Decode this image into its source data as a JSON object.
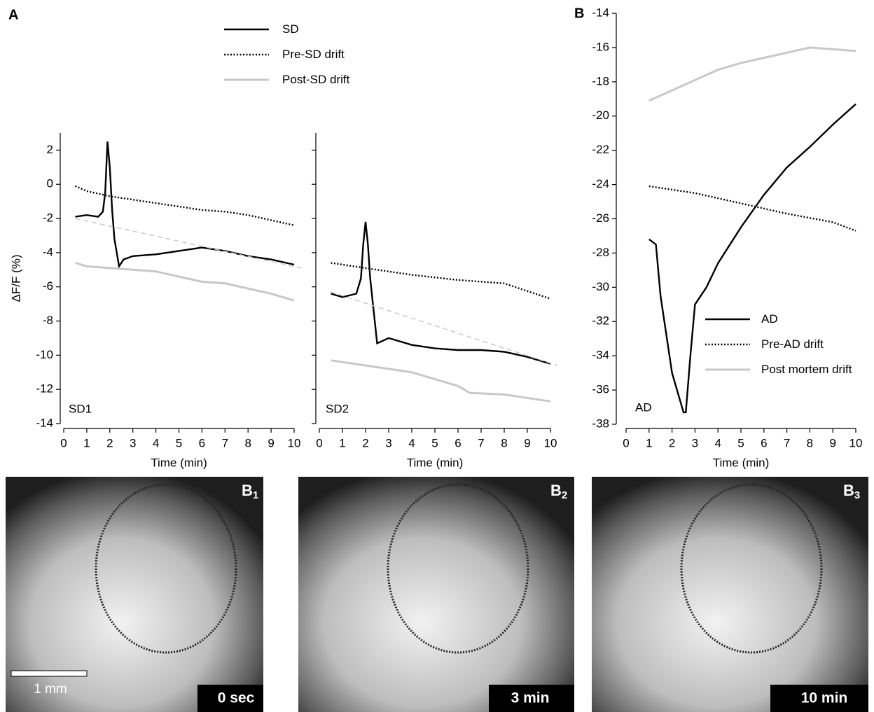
{
  "panel_labels": [
    "A",
    "B"
  ],
  "chart_data": [
    {
      "type": "line",
      "annotation": "SD1",
      "xlabel": "Time (min)",
      "ylabel": "ΔF/F (%)",
      "xlim": [
        0,
        10
      ],
      "xticks": [
        0,
        1,
        2,
        3,
        4,
        5,
        6,
        7,
        8,
        9,
        10
      ],
      "ylim": [
        -14,
        3
      ],
      "yticks": [
        -14,
        -12,
        -10,
        -8,
        -6,
        -4,
        -2,
        0,
        2
      ],
      "show_ytick_labels": true,
      "legend": "top",
      "series": [
        {
          "name": "SD",
          "color": "#000000",
          "dash": "solid",
          "x": [
            0.5,
            1,
            1.5,
            1.7,
            1.8,
            1.9,
            2.0,
            2.1,
            2.2,
            2.4,
            2.6,
            3,
            4,
            5,
            6,
            7,
            8,
            9,
            10
          ],
          "values": [
            -1.9,
            -1.8,
            -1.9,
            -1.6,
            -0.5,
            2.5,
            1.0,
            -1.5,
            -3.2,
            -4.8,
            -4.4,
            -4.2,
            -4.1,
            -3.9,
            -3.7,
            -3.9,
            -4.2,
            -4.4,
            -4.7
          ]
        },
        {
          "name": "Pre-SD drift",
          "color": "#000000",
          "dash": "dotted",
          "x": [
            0.5,
            1,
            2,
            3,
            4,
            5,
            6,
            7,
            8,
            9,
            10
          ],
          "values": [
            -0.1,
            -0.4,
            -0.7,
            -0.9,
            -1.1,
            -1.3,
            -1.5,
            -1.6,
            -1.8,
            -2.1,
            -2.4
          ]
        },
        {
          "name": "Post-SD drift",
          "color": "#c8c8c8",
          "dash": "solid",
          "x": [
            0.5,
            1,
            2,
            3,
            4,
            5,
            6,
            7,
            8,
            9,
            10
          ],
          "values": [
            -4.6,
            -4.8,
            -4.9,
            -5.0,
            -5.1,
            -5.4,
            -5.7,
            -5.8,
            -6.1,
            -6.4,
            -6.8
          ]
        },
        {
          "color": "#c8c8c8",
          "dash": "dashed",
          "x": [
            0.5,
            10.3
          ],
          "values": [
            -2.0,
            -4.9
          ]
        }
      ]
    },
    {
      "type": "line",
      "annotation": "SD2",
      "xlabel": "Time (min)",
      "xlim": [
        0,
        10
      ],
      "xticks": [
        0,
        1,
        2,
        3,
        4,
        5,
        6,
        7,
        8,
        9,
        10
      ],
      "ylim": [
        -14,
        3
      ],
      "yticks": [
        -14,
        -12,
        -10,
        -8,
        -6,
        -4,
        -2,
        0,
        2
      ],
      "show_ytick_labels": false,
      "series": [
        {
          "color": "#000000",
          "dash": "solid",
          "x": [
            0.5,
            1,
            1.6,
            1.8,
            1.9,
            2.0,
            2.1,
            2.2,
            2.5,
            3,
            4,
            5,
            6,
            7,
            8,
            9,
            10
          ],
          "values": [
            -6.4,
            -6.6,
            -6.4,
            -5.5,
            -3.5,
            -2.2,
            -3.5,
            -5.5,
            -9.3,
            -9.0,
            -9.4,
            -9.6,
            -9.7,
            -9.7,
            -9.8,
            -10.1,
            -10.5
          ]
        },
        {
          "color": "#000000",
          "dash": "dotted",
          "x": [
            0.5,
            2,
            4,
            6,
            8,
            10
          ],
          "values": [
            -4.6,
            -4.9,
            -5.3,
            -5.6,
            -5.8,
            -6.7
          ]
        },
        {
          "color": "#c8c8c8",
          "dash": "solid",
          "x": [
            0.5,
            2,
            4,
            6,
            6.5,
            8,
            10
          ],
          "values": [
            -10.3,
            -10.6,
            -11.0,
            -11.8,
            -12.2,
            -12.3,
            -12.7
          ]
        },
        {
          "color": "#c8c8c8",
          "dash": "dashed",
          "x": [
            0.5,
            10.3
          ],
          "values": [
            -6.3,
            -10.6
          ]
        }
      ]
    },
    {
      "type": "line",
      "annotation": "AD",
      "xlabel": "Time (min)",
      "xlim": [
        0,
        10
      ],
      "xticks": [
        0,
        1,
        2,
        3,
        4,
        5,
        6,
        7,
        8,
        9,
        10
      ],
      "ylim": [
        -38,
        -14
      ],
      "yticks": [
        -38,
        -36,
        -34,
        -32,
        -30,
        -28,
        -26,
        -24,
        -22,
        -20,
        -18,
        -16,
        -14
      ],
      "show_ytick_labels": true,
      "legend": "lower right",
      "series": [
        {
          "name": "AD",
          "color": "#000000",
          "dash": "solid",
          "x": [
            1,
            1.3,
            1.5,
            2,
            2.5,
            2.6,
            2.8,
            3,
            3.5,
            4,
            5,
            6,
            7,
            8,
            9,
            10
          ],
          "values": [
            -27.2,
            -27.5,
            -30.5,
            -35,
            -37.3,
            -37.3,
            -34,
            -31,
            -30,
            -28.6,
            -26.5,
            -24.6,
            -23,
            -21.8,
            -20.5,
            -19.3
          ]
        },
        {
          "name": "Pre-AD drift",
          "color": "#000000",
          "dash": "dotted",
          "x": [
            1,
            3,
            5,
            7,
            9,
            10
          ],
          "values": [
            -24.1,
            -24.5,
            -25.1,
            -25.7,
            -26.2,
            -26.7
          ]
        },
        {
          "name": "Post mortem drift",
          "color": "#c8c8c8",
          "dash": "solid",
          "x": [
            1,
            2,
            3,
            4,
            5,
            6,
            7,
            8,
            9,
            10
          ],
          "values": [
            -19.1,
            -18.5,
            -17.9,
            -17.3,
            -16.9,
            -16.6,
            -16.3,
            -16.0,
            -16.1,
            -16.2
          ]
        }
      ]
    }
  ],
  "images": [
    {
      "label": "B",
      "subscript": "1",
      "caption": "0 sec",
      "scale_bar": "1 mm"
    },
    {
      "label": "B",
      "subscript": "2",
      "caption": "3 min"
    },
    {
      "label": "B",
      "subscript": "3",
      "caption": "10 min"
    }
  ]
}
